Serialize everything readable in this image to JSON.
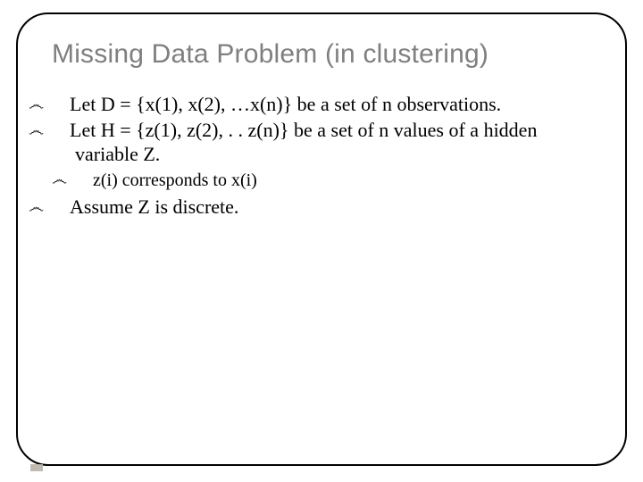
{
  "title": "Missing Data Problem (in clustering)",
  "bullets": {
    "b1": "Let D = {x(1), x(2), …x(n)} be a set of n observations.",
    "b2": "Let H = {z(1), z(2), . . z(n)} be a set of n values of a hidden variable Z.",
    "b2a": "z(i) corresponds to x(i)",
    "b3": "Assume Z is discrete."
  },
  "bullet_glyph": "෴",
  "colors": {
    "title": "#7f7f7f",
    "text": "#000000",
    "border": "#000000",
    "background": "#ffffff"
  },
  "fonts": {
    "title_size": 30,
    "body_size": 22,
    "sub_size": 20
  }
}
